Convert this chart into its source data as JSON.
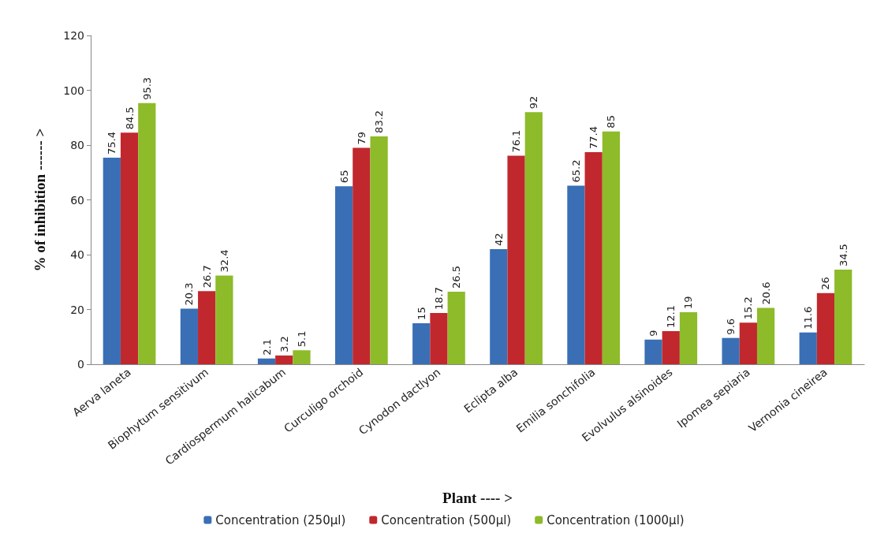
{
  "chart_data": {
    "type": "bar",
    "xlabel": "Plant ---- >",
    "ylabel": "% of inhibition ------ >",
    "categories": [
      "Aerva laneta",
      "Biophytum sensitivum",
      "Cardiospermum halicabum",
      "Curculigo orchoid",
      "Cynodon dactlyon",
      "Eclipta alba",
      "Emilia sonchifolia",
      "Evolvulus alsinoides",
      "Ipomea sepiaria",
      "Vernonia cineirea"
    ],
    "series": [
      {
        "name": "Concentration (250µl)",
        "color": "#3a6fb5",
        "values": [
          75.4,
          20.3,
          2.1,
          65,
          15,
          42,
          65.2,
          9,
          9.6,
          11.6
        ]
      },
      {
        "name": "Concentration (500µl)",
        "color": "#c0282e",
        "values": [
          84.5,
          26.7,
          3.2,
          79,
          18.7,
          76.1,
          77.4,
          12.1,
          15.2,
          26
        ]
      },
      {
        "name": "Concentration (1000µl)",
        "color": "#8dbb2a",
        "values": [
          95.3,
          32.4,
          5.1,
          83.2,
          26.5,
          92,
          85,
          19,
          20.6,
          34.5
        ]
      }
    ],
    "ylim": [
      0,
      120
    ],
    "yticks": [
      0,
      20,
      40,
      60,
      80,
      100,
      120
    ],
    "grid": false,
    "legend": "bottom",
    "data_labels": true
  }
}
